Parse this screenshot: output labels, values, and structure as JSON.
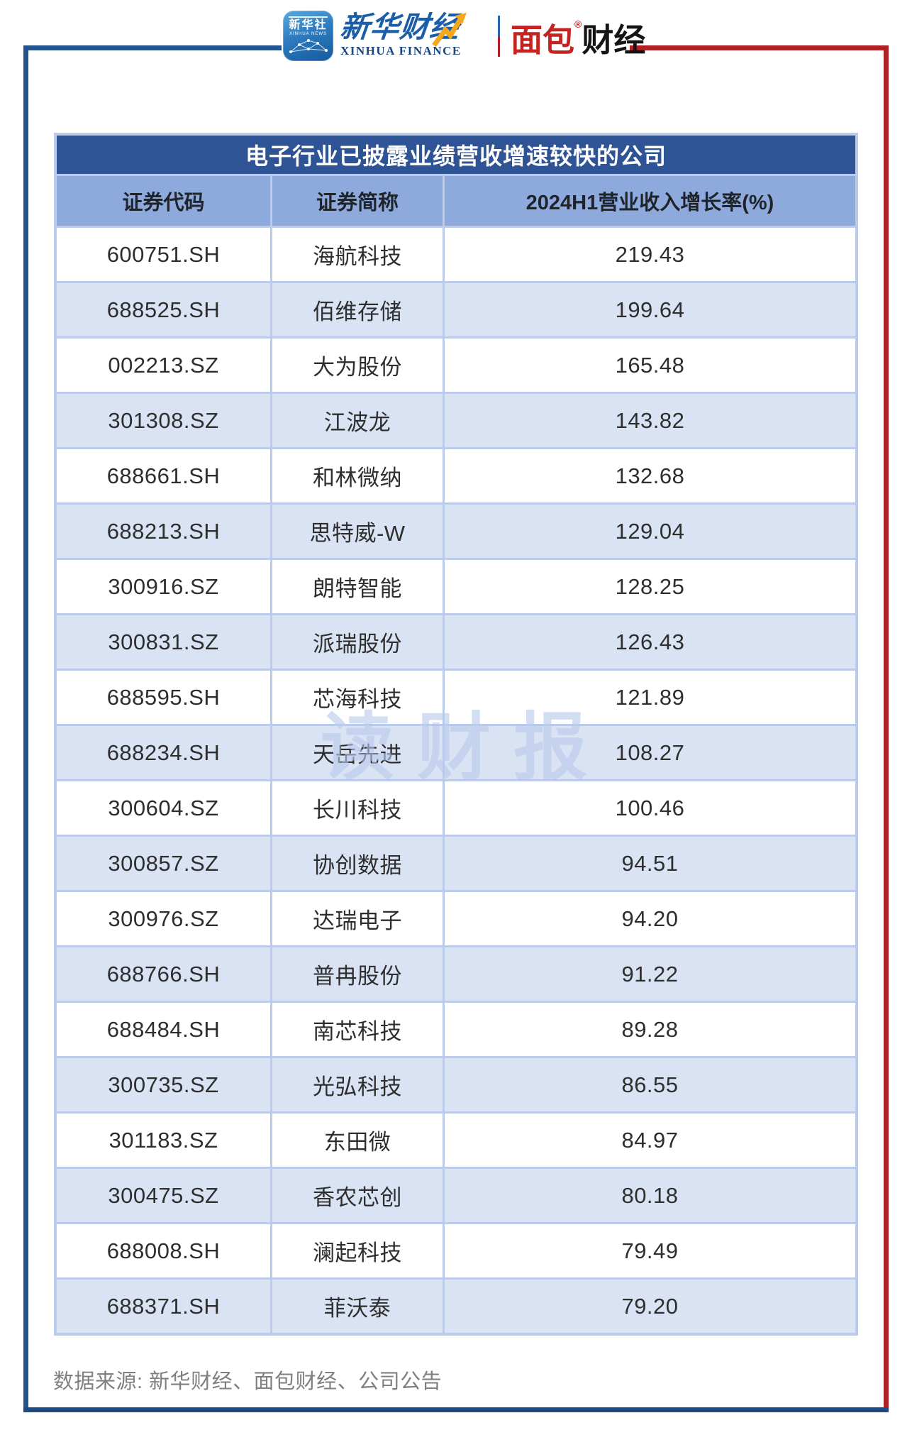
{
  "masthead": {
    "xinhua_app_icon": {
      "cn": "新华社",
      "en": "XINHUA NEWS"
    },
    "xinhua_finance_logo": {
      "cn": "新华财经",
      "en": "XINHUA FINANCE"
    },
    "mianbao_logo": {
      "red_part": "面包",
      "black_part": "财经",
      "registered_mark": "®"
    }
  },
  "table": {
    "title": "电子行业已披露业绩营收增速较快的公司",
    "columns": [
      "证券代码",
      "证券简称",
      "2024H1营业收入增长率(%)"
    ],
    "rows": [
      [
        "600751.SH",
        "海航科技",
        "219.43"
      ],
      [
        "688525.SH",
        "佰维存储",
        "199.64"
      ],
      [
        "002213.SZ",
        "大为股份",
        "165.48"
      ],
      [
        "301308.SZ",
        "江波龙",
        "143.82"
      ],
      [
        "688661.SH",
        "和林微纳",
        "132.68"
      ],
      [
        "688213.SH",
        "思特威-W",
        "129.04"
      ],
      [
        "300916.SZ",
        "朗特智能",
        "128.25"
      ],
      [
        "300831.SZ",
        "派瑞股份",
        "126.43"
      ],
      [
        "688595.SH",
        "芯海科技",
        "121.89"
      ],
      [
        "688234.SH",
        "天岳先进",
        "108.27"
      ],
      [
        "300604.SZ",
        "长川科技",
        "100.46"
      ],
      [
        "300857.SZ",
        "协创数据",
        "94.51"
      ],
      [
        "300976.SZ",
        "达瑞电子",
        "94.20"
      ],
      [
        "688766.SH",
        "普冉股份",
        "91.22"
      ],
      [
        "688484.SH",
        "南芯科技",
        "89.28"
      ],
      [
        "300735.SZ",
        "光弘科技",
        "86.55"
      ],
      [
        "301183.SZ",
        "东田微",
        "84.97"
      ],
      [
        "300475.SZ",
        "香农芯创",
        "80.18"
      ],
      [
        "688008.SH",
        "澜起科技",
        "79.49"
      ],
      [
        "688371.SH",
        "菲沃泰",
        "79.20"
      ]
    ]
  },
  "chart_data": {
    "type": "table",
    "title": "电子行业已披露业绩营收增速较快的公司",
    "columns": [
      "证券代码",
      "证券简称",
      "2024H1营业收入增长率(%)"
    ],
    "rows": [
      [
        "600751.SH",
        "海航科技",
        219.43
      ],
      [
        "688525.SH",
        "佰维存储",
        199.64
      ],
      [
        "002213.SZ",
        "大为股份",
        165.48
      ],
      [
        "301308.SZ",
        "江波龙",
        143.82
      ],
      [
        "688661.SH",
        "和林微纳",
        132.68
      ],
      [
        "688213.SH",
        "思特威-W",
        129.04
      ],
      [
        "300916.SZ",
        "朗特智能",
        128.25
      ],
      [
        "300831.SZ",
        "派瑞股份",
        126.43
      ],
      [
        "688595.SH",
        "芯海科技",
        121.89
      ],
      [
        "688234.SH",
        "天岳先进",
        108.27
      ],
      [
        "300604.SZ",
        "长川科技",
        100.46
      ],
      [
        "300857.SZ",
        "协创数据",
        94.51
      ],
      [
        "300976.SZ",
        "达瑞电子",
        94.2
      ],
      [
        "688766.SH",
        "普冉股份",
        91.22
      ],
      [
        "688484.SH",
        "南芯科技",
        89.28
      ],
      [
        "300735.SZ",
        "光弘科技",
        86.55
      ],
      [
        "301183.SZ",
        "东田微",
        84.97
      ],
      [
        "300475.SZ",
        "香农芯创",
        80.18
      ],
      [
        "688008.SH",
        "澜起科技",
        79.49
      ],
      [
        "688371.SH",
        "菲沃泰",
        79.2
      ]
    ]
  },
  "watermark": "读财报",
  "footer": {
    "source": "数据来源: 新华财经、面包财经、公司公告"
  },
  "colors": {
    "title_bar": "#2E5496",
    "header_row": "#8EAADC",
    "row_alt": "#DAE3F3",
    "card_border": "#BCCBE9",
    "frame_navy": "#24548F",
    "frame_red": "#B02025",
    "logo_red": "#C5231F",
    "logo_blue": "#1A5DA8",
    "arrow_yellow": "#F5A81C"
  }
}
